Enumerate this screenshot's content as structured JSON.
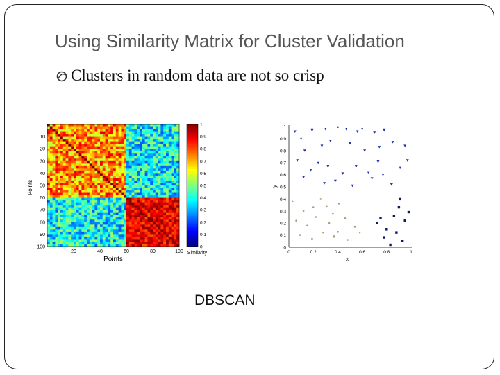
{
  "slide": {
    "title": "Using Similarity Matrix for Cluster Validation",
    "bullet": "Clusters in random data are not so crisp",
    "caption": "DBSCAN"
  },
  "chart_data": [
    {
      "type": "heatmap",
      "title": "",
      "xlabel": "Points",
      "ylabel": "Points",
      "x_ticks": [
        "20",
        "40",
        "60",
        "80",
        "100"
      ],
      "y_ticks": [
        "10",
        "20",
        "30",
        "40",
        "50",
        "60",
        "70",
        "80",
        "90",
        "100"
      ],
      "colorbar": {
        "label": "Similarity",
        "ticks": [
          "0",
          "0.1",
          "0.2",
          "0.3",
          "0.4",
          "0.5",
          "0.6",
          "0.7",
          "0.8",
          "0.9",
          "1"
        ],
        "range": [
          0,
          1
        ],
        "colormap": "jet"
      },
      "blocks": [
        {
          "points": [
            1,
            59
          ],
          "approx_similarity": 0.7
        },
        {
          "points": [
            60,
            100
          ],
          "approx_similarity": 0.9
        }
      ],
      "off_block_similarity": 0.35
    },
    {
      "type": "scatter",
      "title": "",
      "xlabel": "x",
      "ylabel": "y",
      "xlim": [
        0,
        1
      ],
      "ylim": [
        0,
        1
      ],
      "x_ticks": [
        "0",
        "0.2",
        "0.4",
        "0.6",
        "0.8",
        "1"
      ],
      "y_ticks": [
        "0",
        "0.1",
        "0.2",
        "0.3",
        "0.4",
        "0.5",
        "0.6",
        "0.7",
        "0.8",
        "0.9",
        "1"
      ],
      "series": [
        {
          "color": "#2233aa",
          "marker": "triangle",
          "points": [
            [
              0.05,
              0.96
            ],
            [
              0.19,
              0.97
            ],
            [
              0.3,
              0.98
            ],
            [
              0.47,
              0.98
            ],
            [
              0.56,
              0.96
            ],
            [
              0.6,
              0.98
            ],
            [
              0.7,
              0.95
            ],
            [
              0.78,
              0.97
            ],
            [
              0.1,
              0.9
            ],
            [
              0.13,
              0.8
            ],
            [
              0.27,
              0.84
            ],
            [
              0.34,
              0.88
            ],
            [
              0.5,
              0.86
            ],
            [
              0.62,
              0.8
            ],
            [
              0.74,
              0.83
            ],
            [
              0.85,
              0.87
            ],
            [
              0.95,
              0.84
            ],
            [
              0.07,
              0.72
            ],
            [
              0.18,
              0.64
            ],
            [
              0.24,
              0.7
            ],
            [
              0.32,
              0.67
            ],
            [
              0.44,
              0.61
            ],
            [
              0.55,
              0.67
            ],
            [
              0.65,
              0.62
            ],
            [
              0.73,
              0.71
            ],
            [
              0.91,
              0.66
            ],
            [
              0.12,
              0.58
            ],
            [
              0.29,
              0.53
            ],
            [
              0.38,
              0.55
            ],
            [
              0.52,
              0.51
            ],
            [
              0.68,
              0.57
            ],
            [
              0.77,
              0.6
            ],
            [
              0.84,
              0.52
            ],
            [
              0.97,
              0.72
            ]
          ]
        },
        {
          "color": "#b39b7a",
          "marker": "dot",
          "points": [
            [
              0.03,
              0.38
            ],
            [
              0.12,
              0.3
            ],
            [
              0.2,
              0.33
            ],
            [
              0.26,
              0.4
            ],
            [
              0.31,
              0.34
            ],
            [
              0.36,
              0.28
            ],
            [
              0.41,
              0.36
            ],
            [
              0.06,
              0.22
            ],
            [
              0.15,
              0.18
            ],
            [
              0.22,
              0.25
            ],
            [
              0.33,
              0.2
            ],
            [
              0.4,
              0.13
            ],
            [
              0.46,
              0.24
            ],
            [
              0.54,
              0.17
            ],
            [
              0.09,
              0.1
            ],
            [
              0.19,
              0.07
            ],
            [
              0.28,
              0.12
            ],
            [
              0.48,
              0.06
            ],
            [
              0.58,
              0.12
            ],
            [
              0.37,
              0.09
            ]
          ]
        },
        {
          "color": "#0d1a66",
          "marker": "square",
          "points": [
            [
              0.72,
              0.2
            ],
            [
              0.8,
              0.15
            ],
            [
              0.86,
              0.26
            ],
            [
              0.9,
              0.33
            ],
            [
              0.95,
              0.22
            ],
            [
              0.78,
              0.08
            ],
            [
              0.88,
              0.12
            ],
            [
              0.93,
              0.05
            ],
            [
              0.83,
              0.02
            ],
            [
              0.75,
              0.24
            ],
            [
              0.98,
              0.29
            ],
            [
              0.91,
              0.4
            ]
          ]
        },
        {
          "color": "#dd2222",
          "marker": "dot",
          "points": [
            [
              0.4,
              0.99
            ]
          ]
        }
      ]
    }
  ]
}
